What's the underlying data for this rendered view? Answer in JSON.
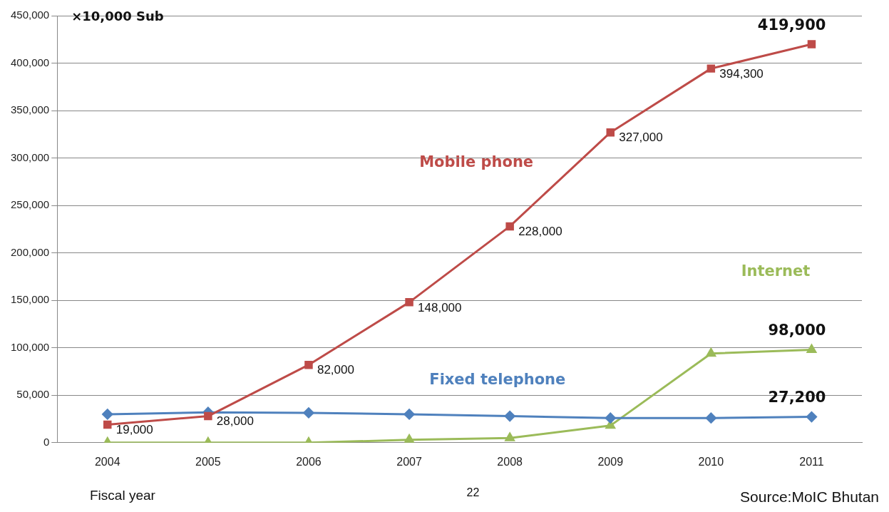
{
  "chart_data": {
    "type": "line",
    "ylabel": "×10,000 Sub",
    "xlabel": "Fiscal year",
    "categories": [
      "2004",
      "2005",
      "2006",
      "2007",
      "2008",
      "2009",
      "2010",
      "2011"
    ],
    "series": [
      {
        "name": "Mobile phone",
        "color": "#be4b48",
        "marker": "square",
        "values": [
          19000,
          28000,
          82000,
          148000,
          228000,
          327000,
          394300,
          419900
        ],
        "value_labels": [
          "19,000",
          "28,000",
          "82,000",
          "148,000",
          "228,000",
          "327,000",
          "394,300",
          "419,900"
        ]
      },
      {
        "name": "Fixed telephone",
        "color": "#4f81bd",
        "marker": "diamond",
        "values": [
          30000,
          32000,
          31500,
          30000,
          28000,
          26000,
          26000,
          27200
        ],
        "value_labels": [
          null,
          null,
          null,
          null,
          null,
          null,
          null,
          "27,200"
        ]
      },
      {
        "name": "Internet",
        "color": "#9bbb59",
        "marker": "triangle",
        "values": [
          0,
          0,
          0,
          3000,
          5000,
          18000,
          94000,
          98000
        ],
        "value_labels": [
          null,
          null,
          null,
          null,
          null,
          null,
          null,
          "98,000"
        ]
      }
    ],
    "ylim": [
      0,
      450000
    ],
    "yticks": [
      0,
      {
        "value": 50000,
        "label": "50,000"
      },
      {
        "value": 100000,
        "label": "100,000"
      },
      {
        "value": 150000,
        "label": "150,000"
      },
      {
        "value": 200000,
        "label": "200,000"
      },
      {
        "value": 250000,
        "label": "250,000"
      },
      {
        "value": 300000,
        "label": "300,000"
      },
      {
        "value": 350000,
        "label": "350,000"
      },
      {
        "value": 400000,
        "label": "400,000"
      },
      {
        "value": 450000,
        "label": "450,000"
      }
    ],
    "grid": "y",
    "legend": false,
    "annotations": [
      "22",
      "Source:MoIC Bhutan"
    ]
  }
}
